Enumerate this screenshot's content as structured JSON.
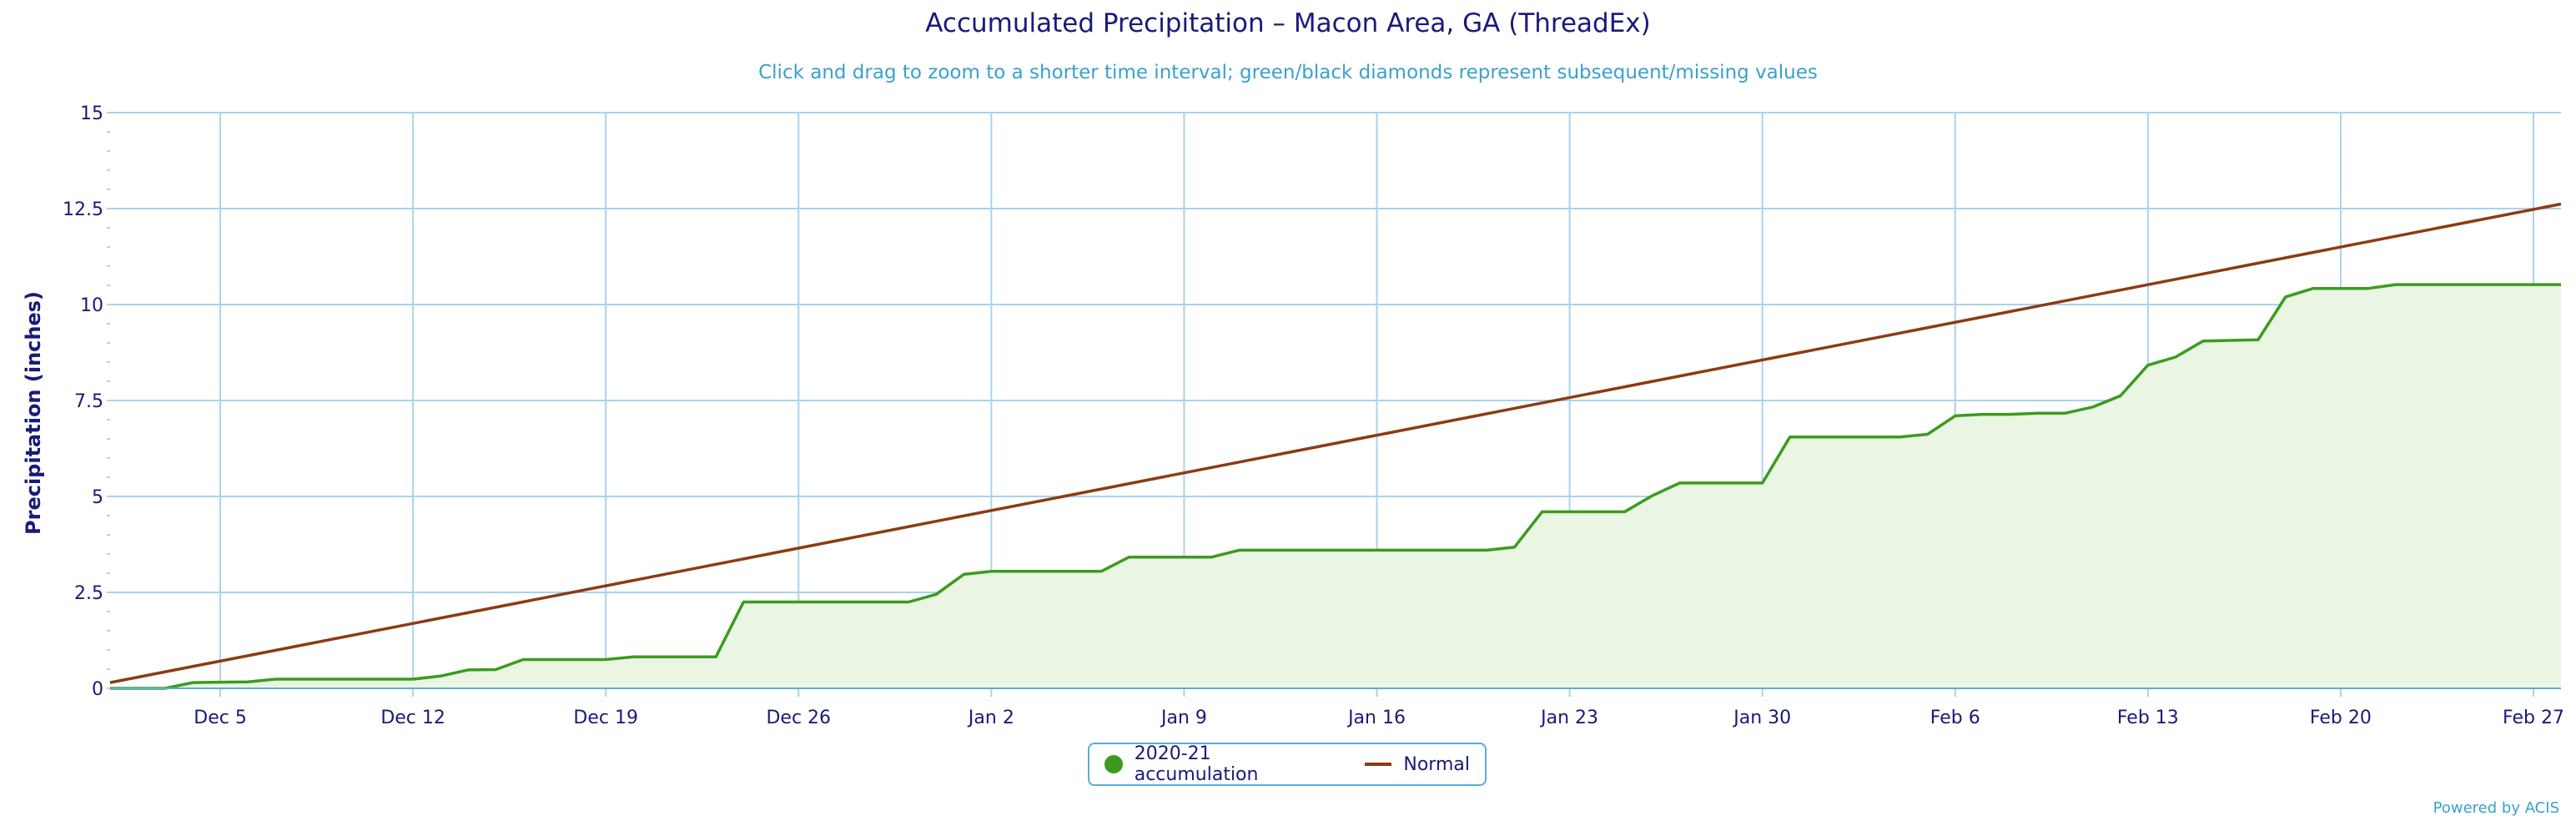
{
  "title": "Accumulated Precipitation – Macon Area, GA (ThreadEx)",
  "subtitle": "Click and drag to zoom to a shorter time interval; green/black diamonds represent subsequent/missing values",
  "credit": "Powered by ACIS",
  "colors": {
    "accumulation": "#3c9b1e",
    "fill": "#eaf5e4",
    "normal": "#8b3c12",
    "grid": "#a9d3ec",
    "axis": "#1a1a7a"
  },
  "chart_data": {
    "type": "line",
    "title": "Accumulated Precipitation – Macon Area, GA (ThreadEx)",
    "subtitle": "Click and drag to zoom to a shorter time interval; green/black diamonds represent subsequent/missing values",
    "xlabel": "",
    "ylabel": "Precipitation (inches)",
    "x_start": "2020-12-01",
    "x_end": "2021-02-28",
    "ylim": [
      0,
      15
    ],
    "yticks": [
      "0",
      "2.5",
      "5",
      "7.5",
      "10",
      "12.5",
      "15"
    ],
    "xticks": [
      {
        "date": "2020-12-05",
        "label": "Dec 5"
      },
      {
        "date": "2020-12-12",
        "label": "Dec 12"
      },
      {
        "date": "2020-12-19",
        "label": "Dec 19"
      },
      {
        "date": "2020-12-26",
        "label": "Dec 26"
      },
      {
        "date": "2021-01-02",
        "label": "Jan 2"
      },
      {
        "date": "2021-01-09",
        "label": "Jan 9"
      },
      {
        "date": "2021-01-16",
        "label": "Jan 16"
      },
      {
        "date": "2021-01-23",
        "label": "Jan 23"
      },
      {
        "date": "2021-01-30",
        "label": "Jan 30"
      },
      {
        "date": "2021-02-06",
        "label": "Feb 6"
      },
      {
        "date": "2021-02-13",
        "label": "Feb 13"
      },
      {
        "date": "2021-02-20",
        "label": "Feb 20"
      },
      {
        "date": "2021-02-27",
        "label": "Feb 27"
      }
    ],
    "grid": true,
    "legend_position": "bottom-center",
    "series": [
      {
        "name": "2020-21 accumulation",
        "type": "area",
        "points": [
          [
            "2020-12-01",
            0.0
          ],
          [
            "2020-12-03",
            0.0
          ],
          [
            "2020-12-04",
            0.15
          ],
          [
            "2020-12-06",
            0.17
          ],
          [
            "2020-12-07",
            0.24
          ],
          [
            "2020-12-12",
            0.24
          ],
          [
            "2020-12-13",
            0.32
          ],
          [
            "2020-12-14",
            0.48
          ],
          [
            "2020-12-15",
            0.49
          ],
          [
            "2020-12-16",
            0.75
          ],
          [
            "2020-12-19",
            0.75
          ],
          [
            "2020-12-20",
            0.82
          ],
          [
            "2020-12-23",
            0.82
          ],
          [
            "2020-12-24",
            2.25
          ],
          [
            "2020-12-30",
            2.25
          ],
          [
            "2020-12-31",
            2.45
          ],
          [
            "2021-01-01",
            2.97
          ],
          [
            "2021-01-02",
            3.05
          ],
          [
            "2021-01-06",
            3.05
          ],
          [
            "2021-01-07",
            3.42
          ],
          [
            "2021-01-10",
            3.42
          ],
          [
            "2021-01-11",
            3.6
          ],
          [
            "2021-01-20",
            3.6
          ],
          [
            "2021-01-21",
            3.68
          ],
          [
            "2021-01-22",
            4.6
          ],
          [
            "2021-01-25",
            4.6
          ],
          [
            "2021-01-26",
            5.02
          ],
          [
            "2021-01-27",
            5.35
          ],
          [
            "2021-01-30",
            5.35
          ],
          [
            "2021-01-31",
            6.55
          ],
          [
            "2021-02-04",
            6.55
          ],
          [
            "2021-02-05",
            6.62
          ],
          [
            "2021-02-06",
            7.1
          ],
          [
            "2021-02-07",
            7.14
          ],
          [
            "2021-02-08",
            7.14
          ],
          [
            "2021-02-09",
            7.17
          ],
          [
            "2021-02-10",
            7.17
          ],
          [
            "2021-02-11",
            7.33
          ],
          [
            "2021-02-12",
            7.62
          ],
          [
            "2021-02-13",
            8.42
          ],
          [
            "2021-02-14",
            8.63
          ],
          [
            "2021-02-15",
            9.05
          ],
          [
            "2021-02-17",
            9.08
          ],
          [
            "2021-02-18",
            10.2
          ],
          [
            "2021-02-19",
            10.42
          ],
          [
            "2021-02-21",
            10.42
          ],
          [
            "2021-02-22",
            10.52
          ],
          [
            "2021-02-28",
            10.52
          ]
        ]
      },
      {
        "name": "Normal",
        "type": "line",
        "points": [
          [
            "2020-12-01",
            0.15
          ],
          [
            "2021-02-28",
            12.62
          ]
        ]
      }
    ]
  }
}
